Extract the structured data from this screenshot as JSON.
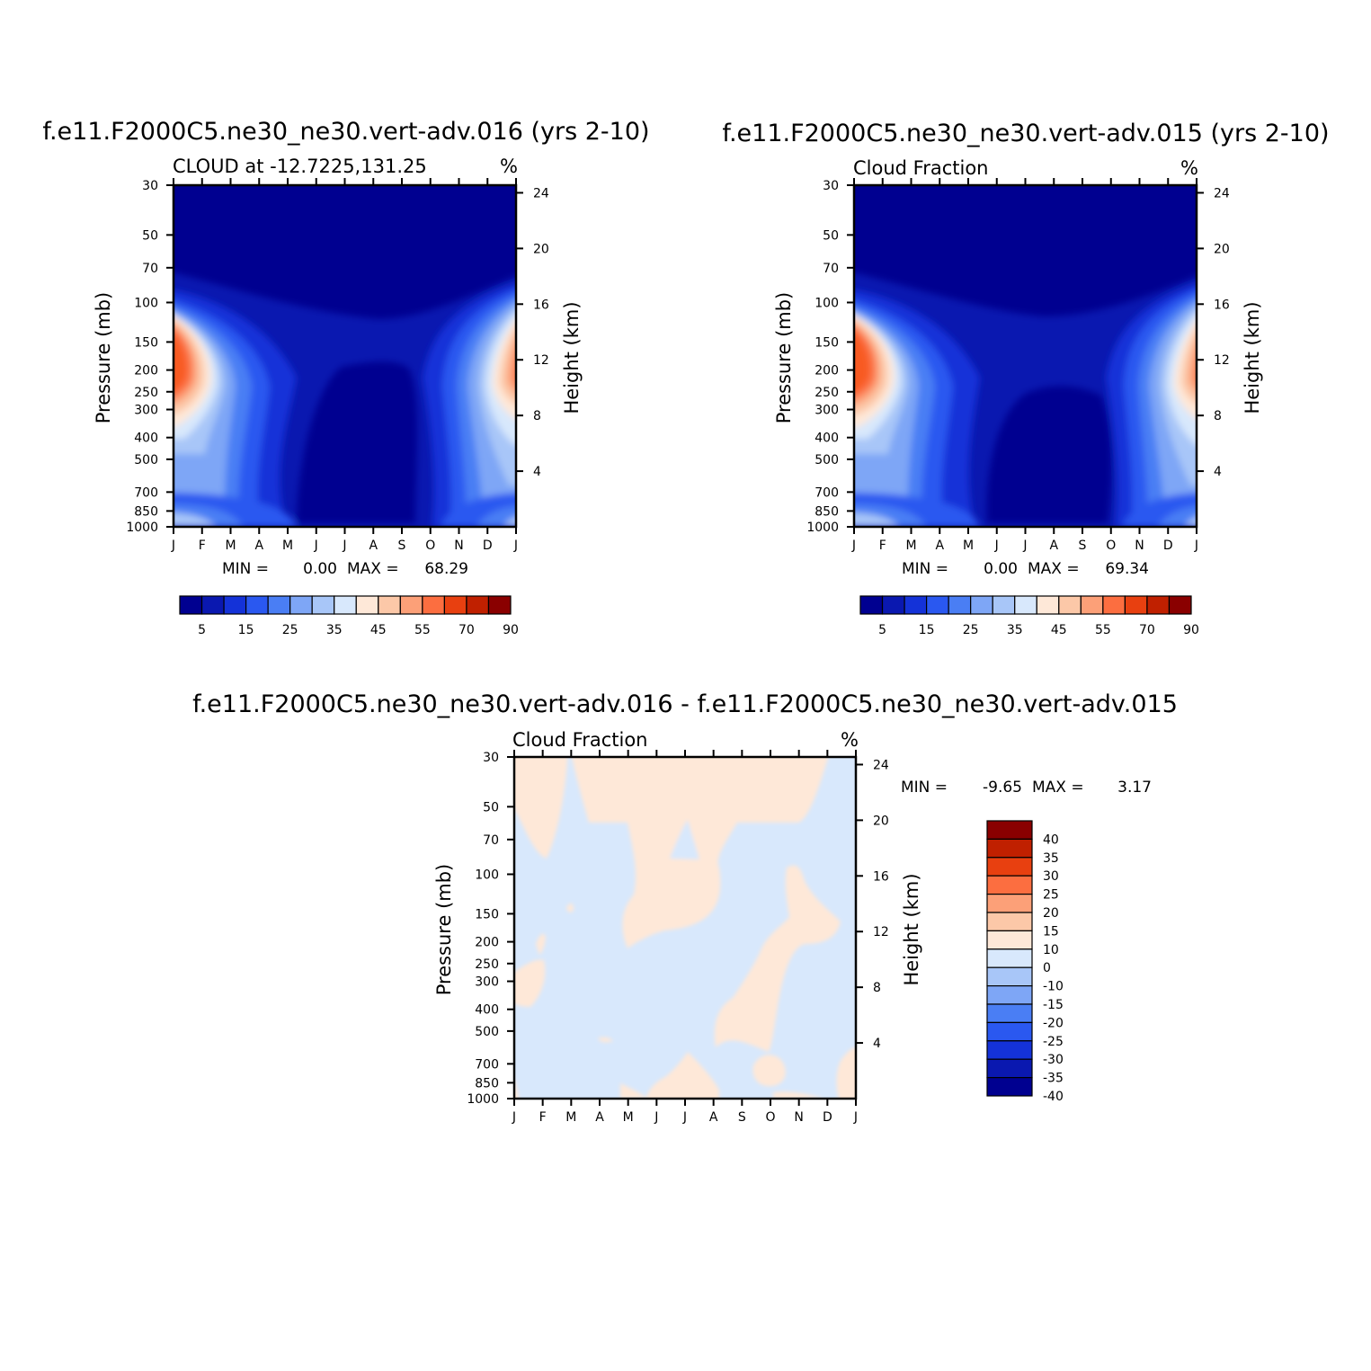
{
  "panels": [
    {
      "id": "p1",
      "title": "f.e11.F2000C5.ne30_ne30.vert-adv.016 (yrs 2-10)",
      "left_string": "CLOUD at -12.7225,131.25",
      "right_string": "%",
      "y_label": "Pressure (mb)",
      "y2_label": "Height (km)",
      "min_label": "MIN =",
      "min_value": "0.00",
      "max_label": "MAX =",
      "max_value": "68.29"
    },
    {
      "id": "p2",
      "title": "f.e11.F2000C5.ne30_ne30.vert-adv.015 (yrs 2-10)",
      "left_string": "Cloud Fraction",
      "right_string": "%",
      "y_label": "Pressure (mb)",
      "y2_label": "Height (km)",
      "min_label": "MIN =",
      "min_value": "0.00",
      "max_label": "MAX =",
      "max_value": "69.34"
    },
    {
      "id": "p3",
      "title": "f.e11.F2000C5.ne30_ne30.vert-adv.016 - f.e11.F2000C5.ne30_ne30.vert-adv.015",
      "left_string": "Cloud Fraction",
      "right_string": "%",
      "y_label": "Pressure (mb)",
      "y2_label": "Height (km)",
      "min_label": "MIN =",
      "min_value": "-9.65",
      "max_label": "MAX =",
      "max_value": "3.17"
    }
  ],
  "chart_data": [
    {
      "type": "heatmap",
      "subtype": "filled-contour",
      "title": "f.e11.F2000C5.ne30_ne30.vert-adv.016 (yrs 2-10)",
      "x_categories": [
        "J",
        "F",
        "M",
        "A",
        "M",
        "J",
        "J",
        "A",
        "S",
        "O",
        "N",
        "D",
        "J"
      ],
      "y_ticks_pressure": [
        30,
        50,
        70,
        100,
        150,
        200,
        250,
        300,
        400,
        500,
        700,
        850,
        1000
      ],
      "y2_ticks_height": [
        4,
        8,
        12,
        16,
        20,
        24
      ],
      "levels": [
        5,
        10,
        15,
        20,
        25,
        30,
        35,
        40,
        45,
        50,
        55,
        60,
        70,
        80,
        90
      ],
      "level_labels": [
        "5",
        "15",
        "25",
        "35",
        "45",
        "55",
        "70",
        "90"
      ],
      "colors": [
        "#000090",
        "#0a18b0",
        "#1432d8",
        "#2a58f0",
        "#4a7ef4",
        "#7ea6f6",
        "#a8c6f8",
        "#d8e8fc",
        "#fee8d8",
        "#fcc8a8",
        "#fca078",
        "#fc6e40",
        "#e84010",
        "#c02000",
        "#8a0000"
      ],
      "min": 0.0,
      "max": 68.29
    },
    {
      "type": "heatmap",
      "subtype": "filled-contour",
      "title": "f.e11.F2000C5.ne30_ne30.vert-adv.015 (yrs 2-10)",
      "x_categories": [
        "J",
        "F",
        "M",
        "A",
        "M",
        "J",
        "J",
        "A",
        "S",
        "O",
        "N",
        "D",
        "J"
      ],
      "y_ticks_pressure": [
        30,
        50,
        70,
        100,
        150,
        200,
        250,
        300,
        400,
        500,
        700,
        850,
        1000
      ],
      "y2_ticks_height": [
        4,
        8,
        12,
        16,
        20,
        24
      ],
      "levels": [
        5,
        10,
        15,
        20,
        25,
        30,
        35,
        40,
        45,
        50,
        55,
        60,
        70,
        80,
        90
      ],
      "level_labels": [
        "5",
        "15",
        "25",
        "35",
        "45",
        "55",
        "70",
        "90"
      ],
      "colors": [
        "#000090",
        "#0a18b0",
        "#1432d8",
        "#2a58f0",
        "#4a7ef4",
        "#7ea6f6",
        "#a8c6f8",
        "#d8e8fc",
        "#fee8d8",
        "#fcc8a8",
        "#fca078",
        "#fc6e40",
        "#e84010",
        "#c02000",
        "#8a0000"
      ],
      "min": 0.0,
      "max": 69.34
    },
    {
      "type": "heatmap",
      "subtype": "filled-contour",
      "title": "f.e11.F2000C5.ne30_ne30.vert-adv.016 - f.e11.F2000C5.ne30_ne30.vert-adv.015",
      "x_categories": [
        "J",
        "F",
        "M",
        "A",
        "M",
        "J",
        "J",
        "A",
        "S",
        "O",
        "N",
        "D",
        "J"
      ],
      "y_ticks_pressure": [
        30,
        50,
        70,
        100,
        150,
        200,
        250,
        300,
        400,
        500,
        700,
        850,
        1000
      ],
      "y2_ticks_height": [
        4,
        8,
        12,
        16,
        20,
        24
      ],
      "levels": [
        -40,
        -35,
        -30,
        -25,
        -20,
        -15,
        -10,
        0,
        10,
        15,
        20,
        25,
        30,
        35,
        40
      ],
      "level_labels": [
        "40",
        "35",
        "30",
        "25",
        "20",
        "15",
        "10",
        "0",
        "-10",
        "-15",
        "-20",
        "-25",
        "-30",
        "-35",
        "-40"
      ],
      "colors": [
        "#000090",
        "#0a18b0",
        "#1432d8",
        "#2a58f0",
        "#4a7ef4",
        "#7ea6f6",
        "#a8c6f8",
        "#d8e8fc",
        "#fee8d8",
        "#fcc8a8",
        "#fca078",
        "#fc6e40",
        "#e84010",
        "#c02000",
        "#8a0000"
      ],
      "min": -9.65,
      "max": 3.17
    }
  ]
}
